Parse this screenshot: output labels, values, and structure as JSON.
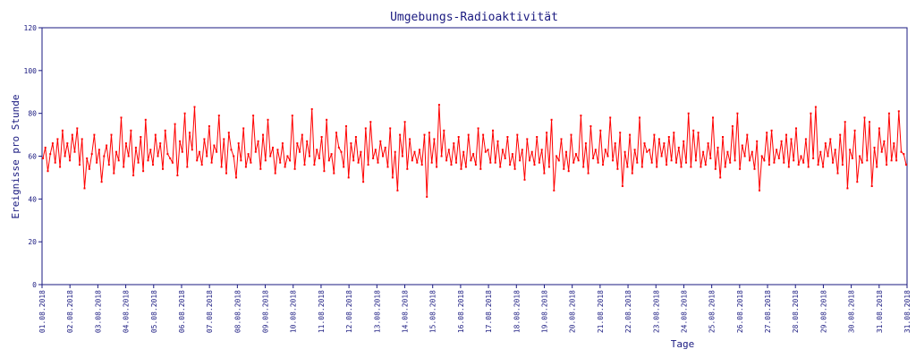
{
  "chart_data": {
    "type": "line",
    "title": "Umgebungs-Radioaktivität",
    "xlabel": "Tage",
    "ylabel": "Ereignisse pro Stunde",
    "ylim": [
      0,
      120
    ],
    "yticks": [
      "0",
      "20",
      "40",
      "60",
      "80",
      "100",
      "120"
    ],
    "xticks": [
      "01.08.2018",
      "02.08.2018",
      "03.08.2018",
      "04.08.2018",
      "05.08.2018",
      "06.08.2018",
      "07.08.2018",
      "08.08.2018",
      "09.08.2018",
      "10.08.2018",
      "11.08.2018",
      "12.08.2018",
      "13.08.2018",
      "14.08.2018",
      "15.08.2018",
      "16.08.2018",
      "17.08.2018",
      "18.08.2018",
      "19.08.2018",
      "20.08.2018",
      "21.08.2018",
      "22.08.2018",
      "23.08.2018",
      "24.08.2018",
      "25.08.2018",
      "26.08.2018",
      "27.08.2018",
      "28.08.2018",
      "29.08.2018",
      "30.08.2018",
      "31.08.2018",
      "31.08.2018"
    ],
    "grid": false,
    "legend": "none",
    "series_color": "#ff0000",
    "series": [
      {
        "values": [
          59,
          64,
          53,
          61,
          66,
          57,
          68,
          55,
          72,
          60,
          66,
          58,
          70,
          62,
          73,
          56,
          68,
          45,
          59,
          54,
          61,
          70,
          57,
          63,
          48,
          60,
          65,
          56,
          70,
          52,
          62,
          58,
          78,
          55,
          66,
          60,
          72,
          51,
          64,
          57,
          69,
          53,
          77,
          58,
          63,
          56,
          70,
          60,
          66,
          54,
          72,
          61,
          59,
          57,
          75,
          51,
          67,
          62,
          80,
          55,
          71,
          63,
          83,
          58,
          62,
          56,
          68,
          60,
          74,
          57,
          65,
          62,
          79,
          55,
          68,
          52,
          71,
          63,
          60,
          50,
          66,
          58,
          73,
          55,
          61,
          57,
          79,
          62,
          67,
          54,
          70,
          58,
          77,
          60,
          64,
          52,
          63,
          57,
          66,
          55,
          60,
          58,
          79,
          54,
          66,
          62,
          70,
          56,
          67,
          60,
          82,
          56,
          63,
          59,
          69,
          53,
          77,
          58,
          61,
          52,
          71,
          64,
          62,
          55,
          74,
          50,
          66,
          58,
          69,
          57,
          62,
          48,
          73,
          56,
          76,
          59,
          63,
          57,
          67,
          60,
          64,
          55,
          73,
          50,
          62,
          44,
          70,
          60,
          76,
          54,
          68,
          58,
          62,
          57,
          63,
          56,
          70,
          41,
          71,
          57,
          68,
          55,
          84,
          60,
          72,
          58,
          63,
          56,
          66,
          57,
          69,
          54,
          62,
          55,
          70,
          58,
          61,
          56,
          73,
          54,
          70,
          62,
          63,
          57,
          72,
          57,
          67,
          55,
          63,
          59,
          69,
          56,
          61,
          54,
          70,
          58,
          63,
          49,
          68,
          58,
          62,
          56,
          69,
          57,
          63,
          52,
          71,
          55,
          77,
          44,
          60,
          58,
          68,
          54,
          62,
          53,
          70,
          57,
          61,
          58,
          79,
          55,
          66,
          52,
          74,
          59,
          63,
          57,
          72,
          56,
          63,
          60,
          78,
          58,
          66,
          54,
          71,
          46,
          62,
          55,
          70,
          52,
          63,
          57,
          78,
          55,
          66,
          62,
          63,
          57,
          70,
          55,
          68,
          60,
          66,
          56,
          69,
          58,
          71,
          57,
          64,
          55,
          67,
          57,
          80,
          55,
          72,
          58,
          71,
          55,
          62,
          56,
          66,
          59,
          78,
          54,
          64,
          50,
          69,
          55,
          62,
          57,
          74,
          58,
          80,
          54,
          65,
          60,
          70,
          58,
          62,
          54,
          67,
          44,
          60,
          58,
          71,
          56,
          72,
          57,
          63,
          59,
          67,
          57,
          70,
          55,
          68,
          58,
          73,
          56,
          60,
          57,
          68,
          55,
          80,
          59,
          83,
          56,
          62,
          55,
          66,
          60,
          68,
          57,
          63,
          52,
          70,
          56,
          76,
          45,
          63,
          59,
          72,
          48,
          60,
          57,
          78,
          58,
          76,
          46,
          64,
          55,
          73,
          62,
          67,
          56,
          80,
          58,
          66,
          58,
          81,
          62,
          61,
          56
        ]
      }
    ]
  }
}
